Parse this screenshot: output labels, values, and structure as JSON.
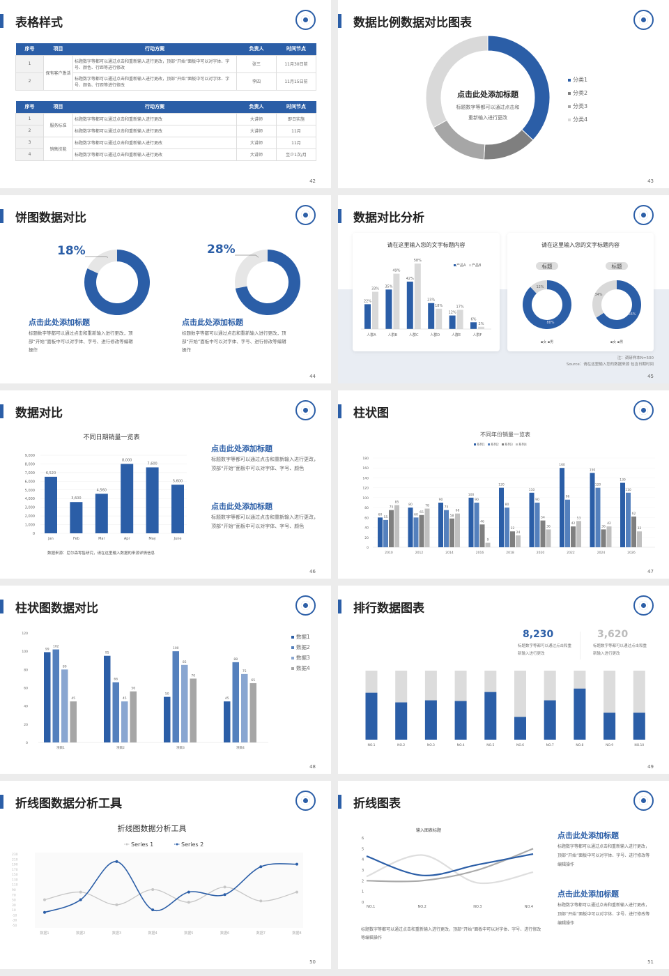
{
  "colors": {
    "blue": "#2b5ea7",
    "blue2": "#5480bd",
    "blue3": "#89a6d1",
    "gray": "#a6a6a6",
    "dgray": "#7f7f7f",
    "lgray": "#d9d9d9"
  },
  "s42": {
    "title": "表格样式",
    "page": "42",
    "headers": [
      "序号",
      "项目",
      "行动方案",
      "负责人",
      "时间节点"
    ],
    "table1": {
      "group": "保有客户激活",
      "rows": [
        {
          "no": "1",
          "plan": "标题数字等都可以通过点击和重新输入进行更改，顶部“开始”面板中可以对字体、字号、颜色、行距等进行修改",
          "owner": "张三",
          "time": "11月30日前"
        },
        {
          "no": "2",
          "plan": "标题数字等都可以通过点击和重新输入进行更改，顶部“开始”面板中可以对字体、字号、颜色、行距等进行修改",
          "owner": "李四",
          "time": "11月15日前"
        }
      ]
    },
    "table2": {
      "groups": [
        "服务标准",
        "销售技能"
      ],
      "rows": [
        {
          "no": "1",
          "plan": "标题数字等都可以通过点击和重新输入进行更改",
          "owner": "大讲师",
          "time": "即日实施"
        },
        {
          "no": "2",
          "plan": "标题数字等都可以通过点击和重新输入进行更改",
          "owner": "大讲师",
          "time": "11月"
        },
        {
          "no": "3",
          "plan": "标题数字等都可以通过点击和重新输入进行更改",
          "owner": "大讲师",
          "time": "11月"
        },
        {
          "no": "4",
          "plan": "标题数字等都可以通过点击和重新输入进行更改",
          "owner": "大讲师",
          "time": "至少1次/月"
        }
      ]
    }
  },
  "s43": {
    "title": "数据比例数据对比图表",
    "page": "43",
    "center_title": "点击此处添加标题",
    "center_text1": "标题数字等都可以通过点击和",
    "center_text2": "重新输入进行更改"
  },
  "s44": {
    "title": "饼图数据对比",
    "page": "44",
    "items": [
      {
        "pct": "18%",
        "heading": "点击此处添加标题",
        "text": "标题数字等都可以通过点击和重新输入进行更改，顶部“开始”面板中可以对字体、字号、进行修改等编辑操作"
      },
      {
        "pct": "28%",
        "heading": "点击此处添加标题",
        "text": "标题数字等都可以通过点击和重新输入进行更改，顶部“开始”面板中可以对字体、字号、进行修改等编辑操作"
      }
    ]
  },
  "s45": {
    "title": "数据对比分析",
    "page": "45",
    "card1_title": "请在这里输入您的文字标题内容",
    "card2_title": "请在这里输入您的文字标题内容",
    "pill": "标题",
    "legend": "▪女 ▪男",
    "note": "注：调研样本N=500",
    "source": "Source：请在这里输入您的数据来源 包含日期时间"
  },
  "s46": {
    "title": "数据对比",
    "page": "46",
    "source": "数据来源：尼尔森零售研究，请在这里输入数据的来源详情信息",
    "blocks": [
      {
        "heading": "点击此处添加标题",
        "text": "标题数字等都可以通过点击和重新输入进行更改，顶部“开始”面板中可以对字体、字号、颜色"
      },
      {
        "heading": "点击此处添加标题",
        "text": "标题数字等都可以通过点击和重新输入进行更改，顶部“开始”面板中可以对字体、字号、颜色"
      }
    ]
  },
  "s47": {
    "title": "柱状图",
    "page": "47"
  },
  "s48": {
    "title": "柱状图数据对比",
    "page": "48"
  },
  "s49": {
    "title": "排行数据图表",
    "page": "49",
    "stat1": {
      "value": "8,230",
      "text": "标题数字等都可以通过点击和重新输入进行更改"
    },
    "stat2": {
      "value": "3,620",
      "text": "标题数字等都可以通过点击和重新输入进行更改"
    }
  },
  "s50": {
    "title": "折线图数据分析工具",
    "page": "50"
  },
  "s51": {
    "title": "折线图表",
    "page": "51",
    "bottom_text": "标题数字等都可以通过点击和重新输入进行更改，顶部“开始”面板中可以对字体、字号、进行修改等编辑操作",
    "blocks": [
      {
        "heading": "点击此处添加标题",
        "text": "标题数字等都可以通过点击和重新输入进行更改，顶部“开始”面板中可以对字体、字号、进行修改等编辑操作"
      },
      {
        "heading": "点击此处添加标题",
        "text": "标题数字等都可以通过点击和重新输入进行更改，顶部“开始”面板中可以对字体、字号、进行修改等编辑操作"
      }
    ]
  },
  "chart_data": [
    {
      "id": "c43",
      "type": "pie",
      "categories": [
        "分类1",
        "分类2",
        "分类3",
        "分类4"
      ],
      "values": [
        37,
        14,
        16,
        33
      ],
      "legend": "right"
    },
    {
      "id": "c44",
      "type": "pie",
      "series": [
        {
          "values": [
            82,
            18
          ]
        },
        {
          "values": [
            72,
            28
          ]
        }
      ],
      "labels": [
        "18%",
        "28%"
      ]
    },
    {
      "id": "c45a",
      "type": "bar",
      "categories": [
        "人群A",
        "人群B",
        "人群C",
        "人群D",
        "人群E",
        "人群F"
      ],
      "series": [
        {
          "name": "产品A",
          "values": [
            22,
            35,
            42,
            23,
            12,
            6
          ]
        },
        {
          "name": "产品B",
          "values": [
            33,
            49,
            58,
            18,
            17,
            2
          ]
        }
      ],
      "unit": "%",
      "legend": "top-right"
    },
    {
      "id": "c45b",
      "type": "pie",
      "categories": [
        "女",
        "男"
      ],
      "series": [
        {
          "values": [
            88,
            12
          ]
        },
        {
          "values": [
            66,
            34
          ]
        }
      ],
      "unit": "%"
    },
    {
      "id": "c46",
      "type": "bar",
      "title": "不同日期销量一览表",
      "categories": [
        "Jan",
        "Feb",
        "Mar",
        "Apr",
        "May",
        "June"
      ],
      "values": [
        6520,
        3600,
        4560,
        8000,
        7600,
        5600
      ],
      "value_labels": [
        "6,520",
        "3,600",
        "4,560",
        "8,000",
        "7,600",
        "5,600"
      ],
      "ylim": [
        0,
        9000
      ],
      "yticks": [
        "0",
        "1,000",
        "2,000",
        "3,000",
        "4,000",
        "5,000",
        "6,000",
        "7,000",
        "8,000",
        "9,000"
      ],
      "grid": true
    },
    {
      "id": "c47",
      "type": "bar",
      "title": "不同年份销量一览表",
      "categories": [
        "2010",
        "2012",
        "2014",
        "2016",
        "2018",
        "2020",
        "2022",
        "2024",
        "2026"
      ],
      "series": [
        {
          "name": "系列1",
          "values": [
            60,
            80,
            90,
            100,
            120,
            110,
            160,
            150,
            130
          ]
        },
        {
          "name": "系列2",
          "values": [
            55,
            60,
            75,
            90,
            80,
            90,
            96,
            120,
            110
          ]
        },
        {
          "name": "系列3",
          "values": [
            75,
            65,
            58,
            46,
            32,
            54,
            42,
            36,
            62
          ]
        },
        {
          "name": "系列4",
          "values": [
            85,
            78,
            68,
            9,
            24,
            36,
            53,
            42,
            32
          ]
        }
      ],
      "ylim": [
        0,
        180
      ],
      "yticks": [
        "0",
        "20",
        "40",
        "60",
        "80",
        "100",
        "120",
        "140",
        "160",
        "180"
      ],
      "legend": "top"
    },
    {
      "id": "c48",
      "type": "bar",
      "categories": [
        "项目1",
        "项目2",
        "项目3",
        "项目4"
      ],
      "series": [
        {
          "name": "数据1",
          "values": [
            99,
            95,
            50,
            45
          ]
        },
        {
          "name": "数据2",
          "values": [
            102,
            66,
            100,
            88
          ]
        },
        {
          "name": "数据3",
          "values": [
            80,
            45,
            85,
            75
          ]
        },
        {
          "name": "数据4",
          "values": [
            45,
            56,
            70,
            65
          ]
        }
      ],
      "ylim": [
        0,
        120
      ],
      "yticks": [
        "0",
        "20",
        "40",
        "60",
        "80",
        "100",
        "120"
      ],
      "legend": "right"
    },
    {
      "id": "c49",
      "type": "bar",
      "stacked": true,
      "categories": [
        "NO.1",
        "NO.2",
        "NO.3",
        "NO.4",
        "NO.5",
        "NO.6",
        "NO.7",
        "NO.8",
        "NO.9",
        "NO.10"
      ],
      "values": [
        0.68,
        0.54,
        0.57,
        0.56,
        0.69,
        0.33,
        0.57,
        0.74,
        0.39,
        0.39
      ]
    },
    {
      "id": "c50",
      "type": "line",
      "title": "折线图数据分析工具",
      "categories": [
        "数据1",
        "数据2",
        "数据3",
        "数据4",
        "数据5",
        "数据6",
        "数据7",
        "数据8"
      ],
      "series": [
        {
          "name": "Series 1",
          "values": [
            50,
            80,
            30,
            90,
            40,
            100,
            45,
            80
          ]
        },
        {
          "name": "Series 2",
          "values": [
            0,
            50,
            200,
            10,
            80,
            70,
            180,
            190
          ]
        }
      ],
      "ylim": [
        -50,
        230
      ],
      "yticks": [
        "230",
        "210",
        "190",
        "170",
        "150",
        "130",
        "110",
        "90",
        "70",
        "50",
        "30",
        "10",
        "-10",
        "-30",
        "-50"
      ],
      "legend": "top"
    },
    {
      "id": "c51",
      "type": "line",
      "title": "输入图表标题",
      "categories": [
        "NO.1",
        "NO.2",
        "NO.3",
        "NO.4"
      ],
      "series": [
        {
          "values": [
            4.3,
            2.5,
            3.5,
            4.5
          ]
        },
        {
          "values": [
            2.4,
            4.4,
            1.8,
            2.8
          ]
        },
        {
          "values": [
            2.0,
            2.0,
            3.0,
            5.0
          ]
        }
      ],
      "ylim": [
        0,
        6
      ],
      "yticks": [
        "0",
        "1",
        "2",
        "3",
        "4",
        "5",
        "6"
      ]
    }
  ]
}
